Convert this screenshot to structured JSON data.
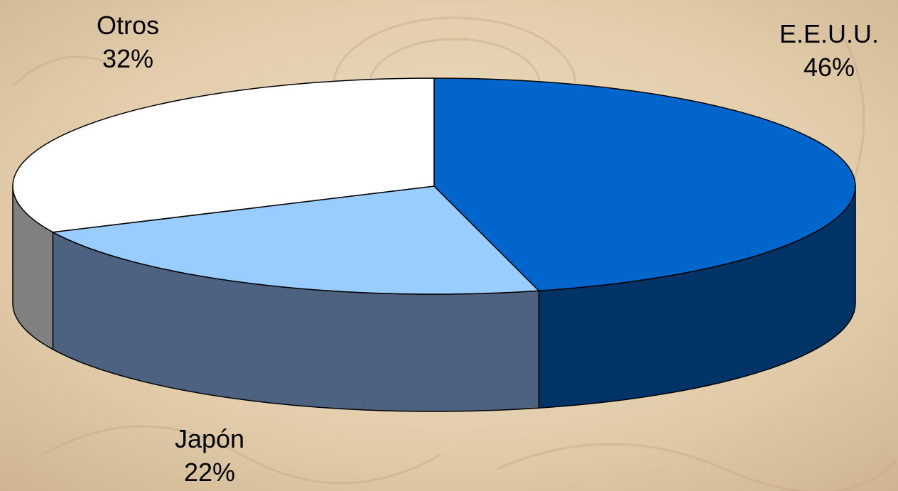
{
  "chart_data": {
    "type": "pie",
    "style": "3d",
    "categories": [
      "E.E.U.U.",
      "Japón",
      "Otros"
    ],
    "values": [
      46,
      22,
      32
    ],
    "value_labels": [
      "46%",
      "22%",
      "32%"
    ],
    "unit": "%",
    "colors": {
      "E.E.U.U.": {
        "top": "#0066cc",
        "side": "#003366"
      },
      "Japón": {
        "top": "#99ccff",
        "side": "#4d6180"
      },
      "Otros": {
        "top": "#ffffff",
        "side": "#808080"
      }
    },
    "legend": "none",
    "start_angle_deg": 0,
    "direction": "clockwise"
  },
  "background": {
    "base_color": "#e6d2b4",
    "accent_color": "#c4a882"
  }
}
